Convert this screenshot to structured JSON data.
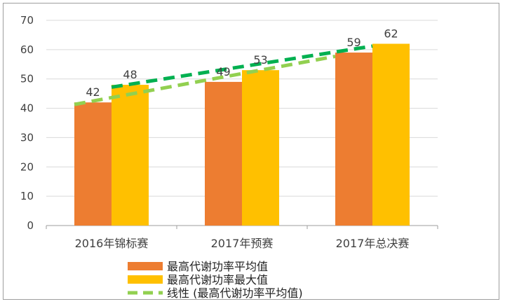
{
  "chart_data": {
    "type": "bar",
    "title": "",
    "xlabel": "",
    "ylabel": "",
    "ylim": [
      0,
      70
    ],
    "y_ticks": [
      0,
      10,
      20,
      30,
      40,
      50,
      60,
      70
    ],
    "grid": true,
    "legend_position": "bottom",
    "categories": [
      "2016年锦标赛",
      "2017年预赛",
      "2017年总决赛"
    ],
    "series": [
      {
        "name": "最高代谢功率平均值",
        "values": [
          42,
          49,
          59
        ],
        "color": "#ed7d31"
      },
      {
        "name": "最高代谢功率最大值",
        "values": [
          48,
          53,
          62
        ],
        "color": "#ffc000"
      }
    ],
    "trendlines": [
      {
        "name": "线性 (最高代谢功率平均值)",
        "series": "最高代谢功率平均值",
        "start": 41.3,
        "end": 57.7,
        "color": "#92d050",
        "style": "dashed",
        "in_legend": true
      },
      {
        "name": "",
        "series": "最高代谢功率最大值",
        "start": 47.2,
        "end": 61.2,
        "color": "#00b050",
        "style": "dashed",
        "in_legend": false
      }
    ]
  },
  "colors": {
    "grid": "#d9d9d9",
    "axis": "#9e9e9e",
    "frame": "#9e9e9e"
  }
}
